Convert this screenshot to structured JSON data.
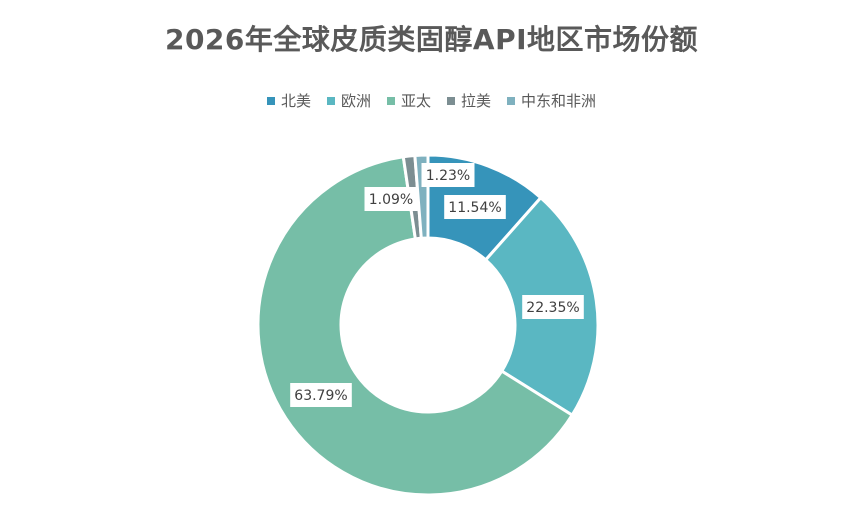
{
  "chart_data": {
    "type": "pie",
    "variant": "donut",
    "title": "2026年全球皮质类固醇API地区市场份额",
    "categories": [
      "北美",
      "欧洲",
      "亚太",
      "拉美",
      "中东和非洲"
    ],
    "values": [
      11.54,
      22.35,
      63.79,
      1.09,
      1.23
    ],
    "data_labels": [
      "11.54%",
      "22.35%",
      "63.79%",
      "1.09%",
      "1.23%"
    ],
    "colors": [
      "#3694BA",
      "#5AB7C2",
      "#76BEA7",
      "#7C8E92",
      "#7FB1BF"
    ],
    "legend_position": "top",
    "start_angle_deg": 0,
    "direction": "clockwise"
  }
}
